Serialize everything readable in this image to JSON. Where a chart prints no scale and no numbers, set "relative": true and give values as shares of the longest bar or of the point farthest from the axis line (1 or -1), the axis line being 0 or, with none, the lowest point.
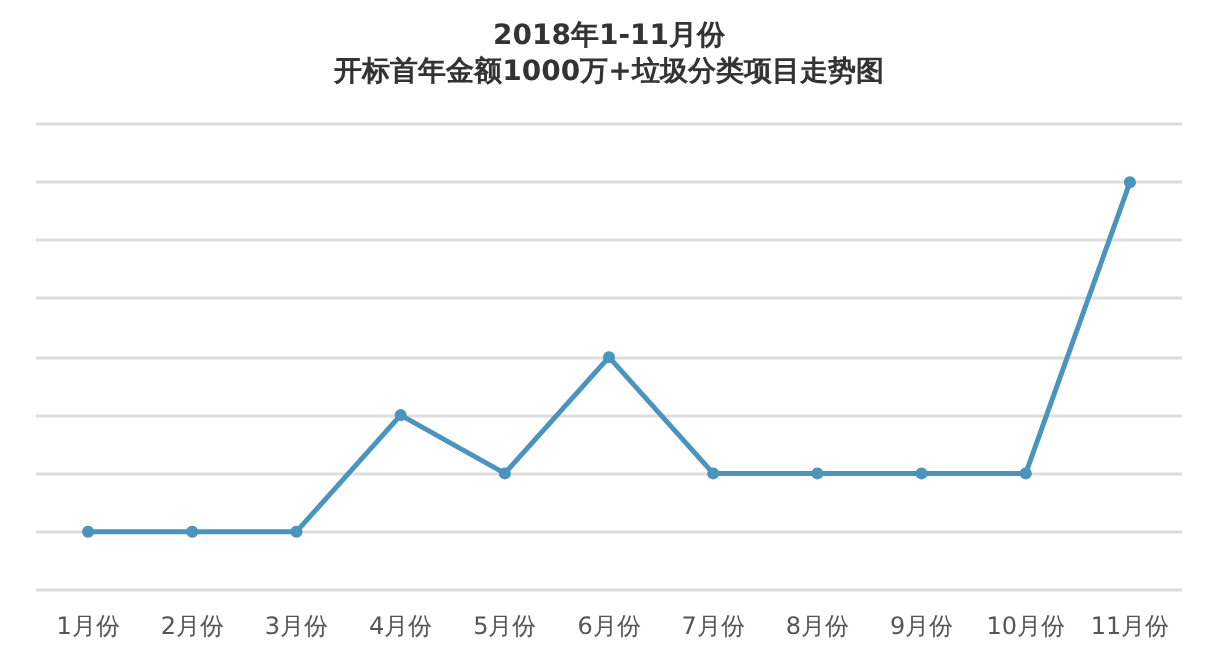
{
  "chart_data": {
    "type": "line",
    "title": "2018年1-11月份",
    "subtitle": "开标首年金额1000万+垃圾分类项目走势图",
    "categories": [
      "1月份",
      "2月份",
      "3月份",
      "4月份",
      "5月份",
      "6月份",
      "7月份",
      "8月份",
      "9月份",
      "10月份",
      "11月份"
    ],
    "relative": true,
    "series": [
      {
        "color": "#4a94bd",
        "values": [
          0.143,
          0.143,
          0.143,
          0.429,
          0.286,
          0.571,
          0.286,
          0.286,
          0.286,
          0.286,
          1
        ]
      }
    ],
    "grid": "y",
    "marker": "circle",
    "line_style": "solid"
  }
}
